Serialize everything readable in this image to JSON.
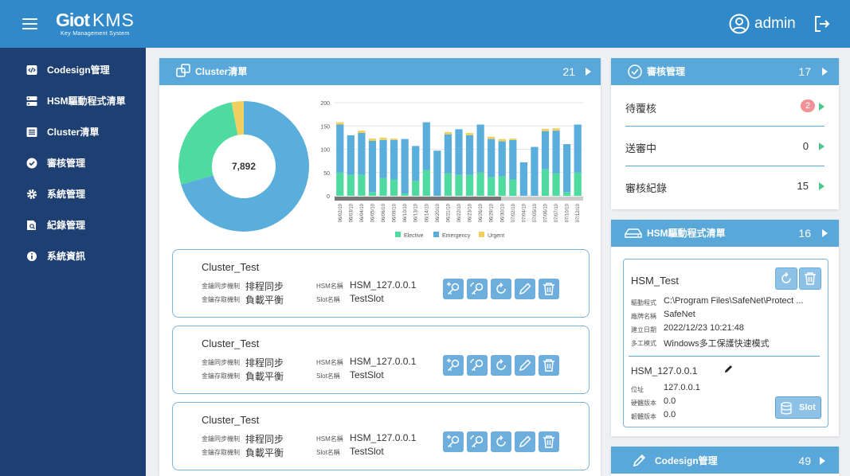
{
  "app": {
    "logo_main": "Giot",
    "logo_kms": "KMS",
    "logo_subtitle": "Key Management System",
    "user": "admin"
  },
  "sidebar": {
    "items": [
      {
        "label": "Codesign管理",
        "icon": "code-icon"
      },
      {
        "label": "HSM驅動程式清單",
        "icon": "server-icon"
      },
      {
        "label": "Cluster清單",
        "icon": "list-icon"
      },
      {
        "label": "審核管理",
        "icon": "check-circle-icon"
      },
      {
        "label": "系統管理",
        "icon": "gear-icon"
      },
      {
        "label": "紀錄管理",
        "icon": "file-search-icon"
      },
      {
        "label": "系統資訊",
        "icon": "info-icon"
      }
    ]
  },
  "cluster_panel": {
    "title": "Cluster清單",
    "count": "21",
    "pie_total": "7,892",
    "cards": [
      {
        "name": "Cluster_Test",
        "sync_label": "金鑰同步機制",
        "sync_value": "排程同步",
        "access_label": "金鑰存取機制",
        "access_value": "負載平衡",
        "hsm_label": "HSM名稱",
        "hsm_value": "HSM_127.0.0.1",
        "slot_label": "Slot名稱",
        "slot_value": "TestSlot"
      },
      {
        "name": "Cluster_Test",
        "sync_label": "金鑰同步機制",
        "sync_value": "排程同步",
        "access_label": "金鑰存取機制",
        "access_value": "負載平衡",
        "hsm_label": "HSM名稱",
        "hsm_value": "HSM_127.0.0.1",
        "slot_label": "Slot名稱",
        "slot_value": "TestSlot"
      },
      {
        "name": "Cluster_Test",
        "sync_label": "金鑰同步機制",
        "sync_value": "排程同步",
        "access_label": "金鑰存取機制",
        "access_value": "負載平衡",
        "hsm_label": "HSM名稱",
        "hsm_value": "HSM_127.0.0.1",
        "slot_label": "Slot名稱",
        "slot_value": "TestSlot"
      }
    ]
  },
  "review_panel": {
    "title": "審核管理",
    "count": "17",
    "rows": [
      {
        "label": "待覆核",
        "value": "2"
      },
      {
        "label": "送審中",
        "value": "0"
      },
      {
        "label": "審核紀錄",
        "value": "15"
      }
    ]
  },
  "hsm_panel": {
    "title": "HSM驅動程式清單",
    "count": "16",
    "card": {
      "name": "HSM_Test",
      "driver_label": "驅動程式",
      "driver_value": "C:\\Program Files\\SafeNet\\Protect ...",
      "vendor_label": "廠牌名稱",
      "vendor_value": "SafeNet",
      "date_label": "建立日期",
      "date_value": "2022/12/23 10:21:48",
      "mode_label": "多工模式",
      "mode_value": "Windows多工保護快速模式",
      "hsm_name": "HSM_127.0.0.1",
      "addr_label": "位址",
      "addr_value": "127.0.0.1",
      "hw_label": "硬體版本",
      "hw_value": "0.0",
      "fw_label": "韌體版本",
      "fw_value": "0.0",
      "slot_button": "Slot"
    }
  },
  "codesign_panel": {
    "title": "Codesign管理",
    "count": "49"
  },
  "colors": {
    "topbar": "#3189c9",
    "sidebar": "#1e3f72",
    "panel_header": "#59a8d9",
    "elective": "#4fdba0",
    "emergency": "#5aaedb",
    "urgent": "#f0d060"
  },
  "chart_data": [
    {
      "type": "pie",
      "center_label": "7,892",
      "labels": [
        "Emergency",
        "Elective",
        "Urgent"
      ],
      "values": [
        70.5,
        26.5,
        3.0
      ],
      "colors": [
        "#5aaedb",
        "#4fdba0",
        "#f0d060"
      ]
    },
    {
      "type": "bar",
      "stacked": true,
      "categories": [
        "06/02/10",
        "06/03/10",
        "06/04/10",
        "06/05/10",
        "06/06/10",
        "06/09/10",
        "06/10/10",
        "06/13/10",
        "06/14/10",
        "06/20/10",
        "06/21/10",
        "06/22/10",
        "06/23/10",
        "06/26/10",
        "06/29/10",
        "06/30/10",
        "07/02/10",
        "07/04/10",
        "07/05/10",
        "07/06/10",
        "07/07/10",
        "07/10/10",
        "07/12/10"
      ],
      "series": [
        {
          "name": "Elective",
          "values": [
            50,
            45,
            45,
            8,
            38,
            35,
            5,
            32,
            55,
            0,
            48,
            45,
            45,
            50,
            40,
            42,
            35,
            0,
            0,
            57,
            48,
            8,
            50
          ]
        },
        {
          "name": "Emergency",
          "values": [
            103,
            85,
            90,
            110,
            82,
            85,
            117,
            75,
            103,
            97,
            84,
            98,
            85,
            103,
            82,
            75,
            85,
            72,
            105,
            82,
            92,
            103,
            103
          ]
        },
        {
          "name": "Urgent",
          "values": [
            5,
            0,
            5,
            5,
            5,
            3,
            0,
            0,
            0,
            0,
            5,
            0,
            5,
            0,
            5,
            5,
            3,
            0,
            0,
            5,
            5,
            0,
            0
          ]
        }
      ],
      "ylim": [
        0,
        200
      ],
      "yticks": [
        0,
        50,
        100,
        150,
        200
      ],
      "legend": [
        "Elective",
        "Emergency",
        "Urgent"
      ],
      "legend_position": "bottom"
    }
  ]
}
